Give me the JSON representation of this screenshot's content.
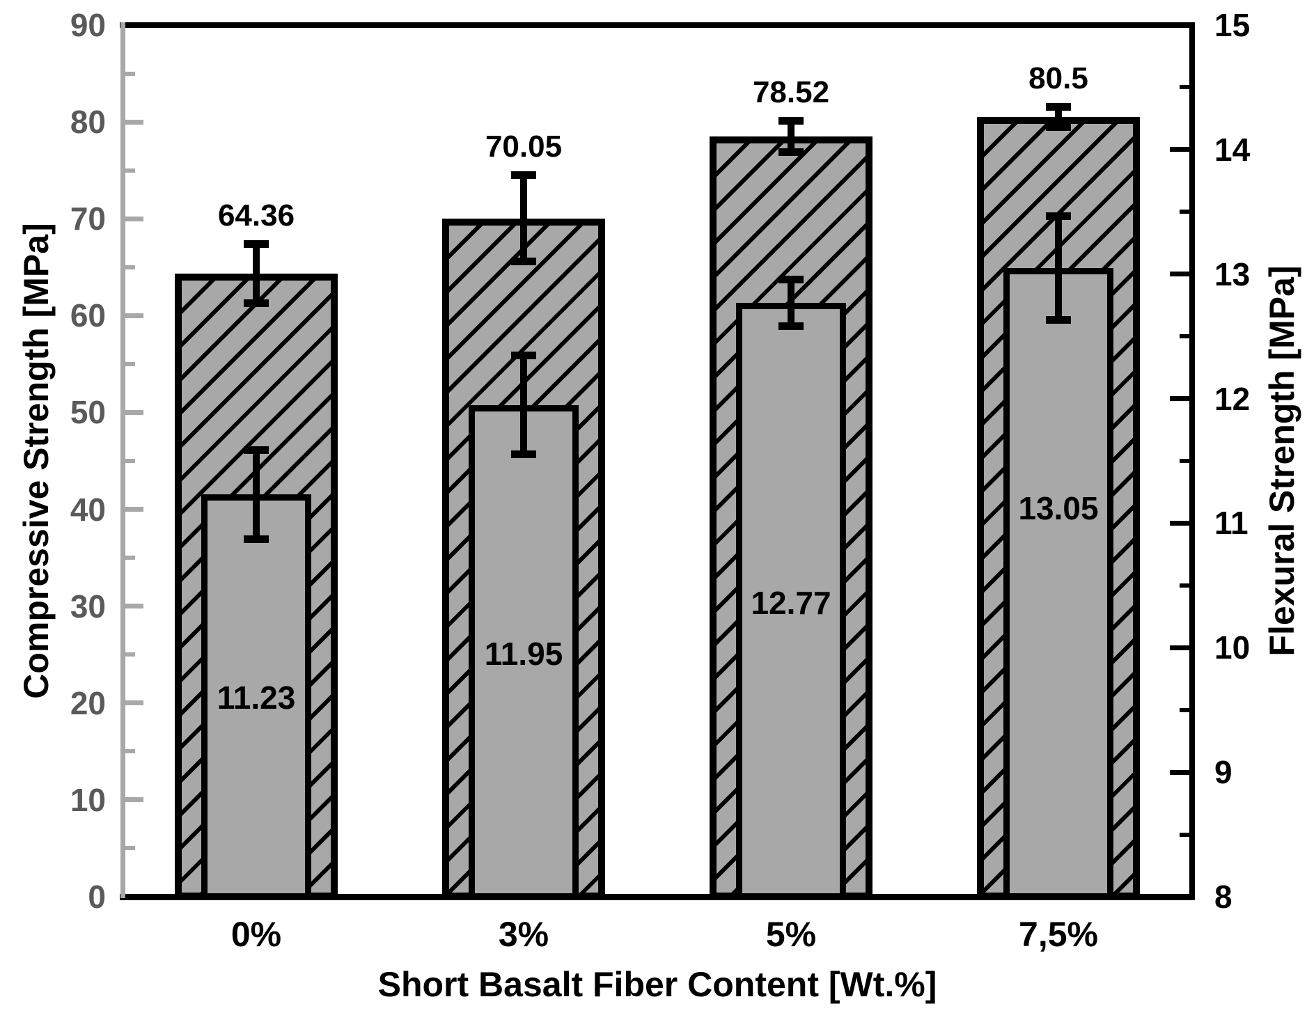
{
  "chart_data": {
    "type": "bar",
    "title": "",
    "xlabel": "Short Basalt Fiber Content [Wt.%]",
    "categories": [
      "0%",
      "3%",
      "5%",
      "7,5%"
    ],
    "series": [
      {
        "name": "Compressive Strength",
        "axis": "left",
        "style": "hatched-outer-bar",
        "values": [
          64.36,
          70.05,
          78.52,
          80.5
        ],
        "errors": [
          3.1,
          4.5,
          1.65,
          1.1
        ],
        "data_labels": [
          "64.36",
          "70.05",
          "78.52",
          "80.5"
        ]
      },
      {
        "name": "Flexural Strength",
        "axis": "right",
        "style": "solid-inner-bar",
        "values": [
          11.23,
          11.95,
          12.77,
          13.05
        ],
        "errors": [
          0.36,
          0.4,
          0.19,
          0.42
        ],
        "data_labels": [
          "11.23",
          "11.95",
          "12.77",
          "13.05"
        ],
        "data_label_y": [
          9.6,
          9.95,
          10.36,
          11.12
        ]
      }
    ],
    "left_axis": {
      "label": "Compressive Strength [MPa]",
      "min": 0,
      "max": 90,
      "major_step": 10,
      "minor_step": 5,
      "tick_labels": [
        "0",
        "10",
        "20",
        "30",
        "40",
        "50",
        "60",
        "70",
        "80",
        "90"
      ]
    },
    "right_axis": {
      "label": "Flexural Strength [MPa]",
      "min": 8,
      "max": 15,
      "major_step": 1,
      "minor_step": 0.5,
      "tick_labels": [
        "8",
        "9",
        "10",
        "11",
        "12",
        "13",
        "14",
        "15"
      ]
    },
    "grid": false,
    "legend": "none",
    "colors": {
      "background": "#ffffff",
      "bar_fill": "#a8a8a8",
      "hatch_line": "#000000",
      "bar_border": "#000000",
      "error_bar": "#000000",
      "value_text": "#000000",
      "left_axis_line": "#a8a8a8",
      "left_tick_text": "#5a5a5a",
      "right_axis_line": "#000000",
      "right_tick_text": "#000000",
      "x_tick_text": "#000000"
    }
  }
}
